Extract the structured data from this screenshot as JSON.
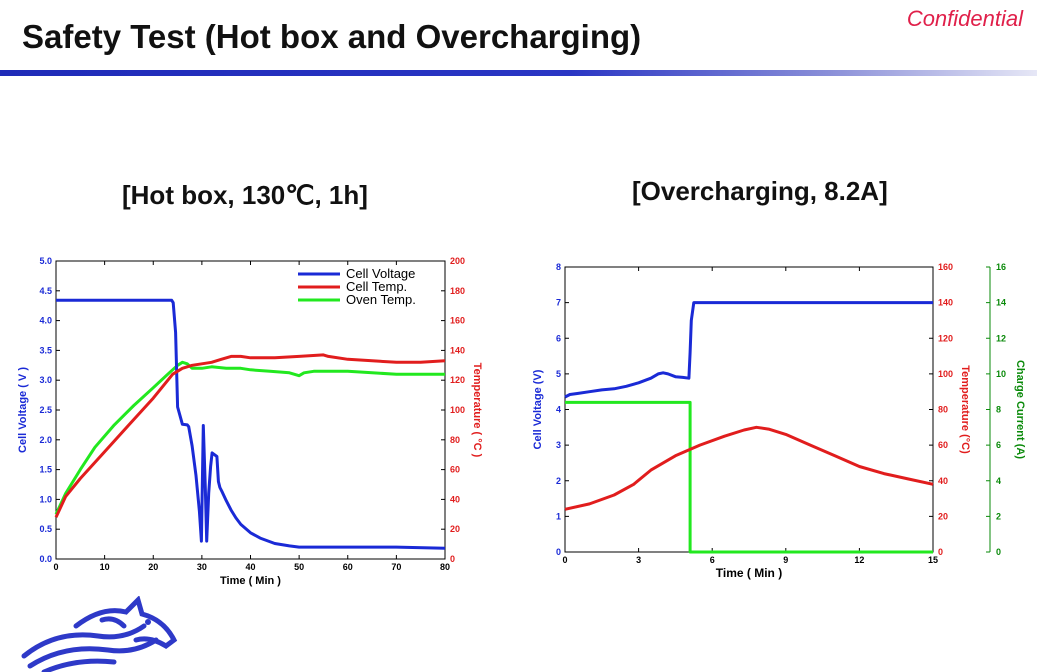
{
  "slide": {
    "title": "Safety Test (Hot box and Overcharging)",
    "confidential": "Confidential"
  },
  "colors": {
    "blue": "#1a2ad6",
    "red": "#e11d1d",
    "green": "#22e81f",
    "title_bar": "#2a36c4",
    "confidential": "#e0204a"
  },
  "chart_data": [
    {
      "type": "line",
      "heading": "[Hot box, 130℃, 1h]",
      "xlabel": "Time ( Min )",
      "ylabel": "Cell Voltage ( V )",
      "y2label": "Temperature ( °C )",
      "xlim": [
        0,
        80
      ],
      "ylim": [
        0,
        5
      ],
      "y2lim": [
        0,
        200
      ],
      "xticks": [
        0,
        10,
        20,
        30,
        40,
        50,
        60,
        70,
        80
      ],
      "yticks": [
        0.0,
        0.5,
        1.0,
        1.5,
        2.0,
        2.5,
        3.0,
        3.5,
        4.0,
        4.5,
        5.0
      ],
      "y2ticks": [
        0,
        20,
        40,
        60,
        80,
        100,
        120,
        140,
        160,
        180,
        200
      ],
      "legend_position": "top-right",
      "grid": false,
      "series": [
        {
          "name": "Cell Voltage",
          "axis": "left",
          "color": "#1a2ad6",
          "x": [
            0,
            23.8,
            24.1,
            24.6,
            25,
            26,
            27,
            27.3,
            28,
            28.8,
            29.5,
            29.9,
            30.3,
            30.7,
            31,
            31.4,
            31.8,
            32.1,
            32.6,
            33.1,
            33.4,
            33.7,
            34.2,
            35,
            36,
            37,
            38,
            40,
            42,
            45,
            48,
            50,
            60,
            70,
            80
          ],
          "y": [
            4.34,
            4.34,
            4.3,
            3.8,
            2.55,
            2.26,
            2.25,
            2.22,
            1.9,
            1.4,
            0.8,
            0.3,
            2.24,
            1.2,
            0.3,
            1.1,
            1.55,
            1.78,
            1.75,
            1.72,
            1.3,
            1.2,
            1.12,
            0.98,
            0.82,
            0.69,
            0.58,
            0.44,
            0.35,
            0.26,
            0.22,
            0.2,
            0.2,
            0.2,
            0.18
          ]
        },
        {
          "name": "Cell Temp.",
          "axis": "right",
          "color": "#e11d1d",
          "x": [
            0,
            2,
            5,
            10,
            15,
            20,
            24,
            26,
            28,
            30,
            32,
            34,
            36,
            38,
            40,
            45,
            50,
            55,
            56,
            60,
            65,
            70,
            75,
            80
          ],
          "y": [
            28,
            42,
            54,
            72,
            90,
            108,
            124,
            128,
            130,
            131,
            132,
            134,
            136,
            136,
            135,
            135,
            136,
            137,
            136,
            134,
            133,
            132,
            132,
            133
          ]
        },
        {
          "name": "Oven Temp.",
          "axis": "right",
          "color": "#22e81f",
          "x": [
            0,
            2,
            5,
            8,
            12,
            16,
            20,
            23,
            25,
            26,
            27,
            28,
            30,
            32,
            35,
            38,
            40,
            44,
            48,
            50,
            51,
            53,
            56,
            60,
            65,
            70,
            75,
            80
          ],
          "y": [
            30,
            44,
            60,
            75,
            90,
            103,
            115,
            124,
            130,
            132,
            131,
            128,
            128,
            129,
            128,
            128,
            127,
            126,
            125,
            123,
            125,
            126,
            126,
            126,
            125,
            124,
            124,
            124
          ]
        }
      ]
    },
    {
      "type": "line",
      "heading": "[Overcharging, 8.2A]",
      "xlabel": "Time ( Min )",
      "ylabel": "Cell Voltage (V)",
      "y2label": "Temperature (°C)",
      "y3label": "Charge Current (A)",
      "xlim": [
        0,
        15
      ],
      "ylim": [
        0,
        8
      ],
      "y2lim": [
        0,
        160
      ],
      "y3lim": [
        0,
        16
      ],
      "xticks": [
        0,
        3,
        6,
        9,
        12,
        15
      ],
      "yticks": [
        0,
        1,
        2,
        3,
        4,
        5,
        6,
        7,
        8
      ],
      "y2ticks": [
        0,
        20,
        40,
        60,
        80,
        100,
        120,
        140,
        160
      ],
      "y3ticks": [
        0,
        2,
        4,
        6,
        8,
        10,
        12,
        14,
        16
      ],
      "grid": false,
      "series": [
        {
          "axis": "left",
          "color": "#1a2ad6",
          "x": [
            0,
            0.2,
            0.5,
            1,
            1.5,
            2,
            2.5,
            3,
            3.5,
            3.8,
            4,
            4.2,
            4.5,
            4.8,
            5.05,
            5.1,
            5.15,
            5.25,
            6,
            9,
            12,
            15
          ],
          "y": [
            4.35,
            4.42,
            4.45,
            4.5,
            4.55,
            4.58,
            4.65,
            4.75,
            4.88,
            5.0,
            5.03,
            5.0,
            4.92,
            4.9,
            4.88,
            5.6,
            6.5,
            7.0,
            7.0,
            7.0,
            7.0,
            7.0
          ]
        },
        {
          "axis": "right",
          "color": "#e11d1d",
          "x": [
            0,
            1,
            2,
            2.8,
            3.5,
            4.5,
            5.5,
            6.5,
            7.3,
            7.8,
            8.3,
            9,
            10,
            11,
            12,
            13,
            14,
            15
          ],
          "y": [
            24,
            27,
            32,
            38,
            46,
            54,
            60,
            65,
            68.5,
            70,
            69,
            66,
            60,
            54,
            48,
            44,
            41,
            38
          ]
        },
        {
          "axis": "right2",
          "color": "#22e81f",
          "x": [
            0,
            5.1,
            5.1,
            15
          ],
          "y": [
            8.4,
            8.4,
            0,
            0
          ]
        }
      ]
    }
  ]
}
